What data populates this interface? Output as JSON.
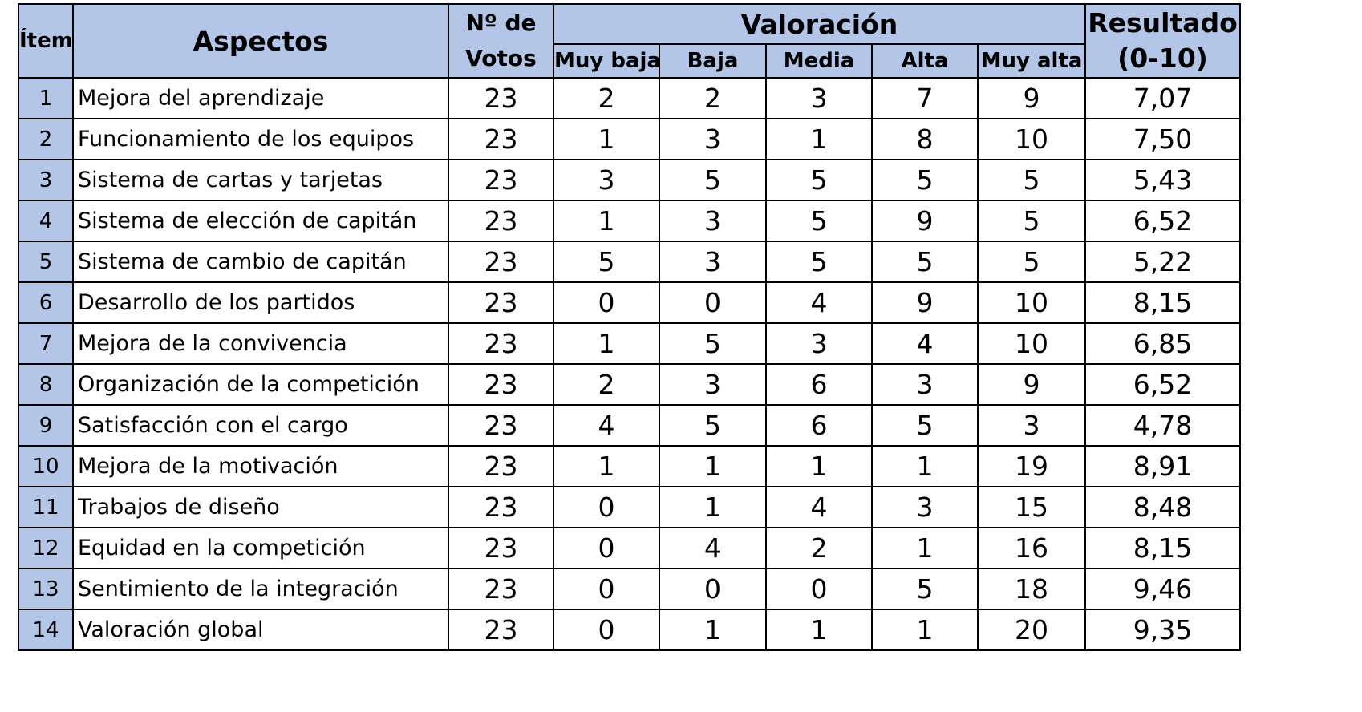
{
  "headers": {
    "item": "Ítem",
    "aspect": "Aspectos",
    "votes_line1": "Nº de",
    "votes_line2": "Votos",
    "valoracion": "Valoración",
    "muy_baja": "Muy baja",
    "baja": "Baja",
    "media": "Media",
    "alta": "Alta",
    "muy_alta": "Muy alta",
    "result_line1": "Resultado",
    "result_line2": "(0-10)"
  },
  "rows": [
    {
      "item": "1",
      "aspect": "Mejora del aprendizaje",
      "votes": "23",
      "muy_baja": "2",
      "baja": "2",
      "media": "3",
      "alta": "7",
      "muy_alta": "9",
      "result": "7,07"
    },
    {
      "item": "2",
      "aspect": "Funcionamiento de los equipos",
      "votes": "23",
      "muy_baja": "1",
      "baja": "3",
      "media": "1",
      "alta": "8",
      "muy_alta": "10",
      "result": "7,50"
    },
    {
      "item": "3",
      "aspect": "Sistema de cartas y tarjetas",
      "votes": "23",
      "muy_baja": "3",
      "baja": "5",
      "media": "5",
      "alta": "5",
      "muy_alta": "5",
      "result": "5,43"
    },
    {
      "item": "4",
      "aspect": "Sistema de elección de capitán",
      "votes": "23",
      "muy_baja": "1",
      "baja": "3",
      "media": "5",
      "alta": "9",
      "muy_alta": "5",
      "result": "6,52"
    },
    {
      "item": "5",
      "aspect": "Sistema de cambio de capitán",
      "votes": "23",
      "muy_baja": "5",
      "baja": "3",
      "media": "5",
      "alta": "5",
      "muy_alta": "5",
      "result": "5,22"
    },
    {
      "item": "6",
      "aspect": "Desarrollo de los partidos",
      "votes": "23",
      "muy_baja": "0",
      "baja": "0",
      "media": "4",
      "alta": "9",
      "muy_alta": "10",
      "result": "8,15"
    },
    {
      "item": "7",
      "aspect": "Mejora de la convivencia",
      "votes": "23",
      "muy_baja": "1",
      "baja": "5",
      "media": "3",
      "alta": "4",
      "muy_alta": "10",
      "result": "6,85"
    },
    {
      "item": "8",
      "aspect": "Organización de la competición",
      "votes": "23",
      "muy_baja": "2",
      "baja": "3",
      "media": "6",
      "alta": "3",
      "muy_alta": "9",
      "result": "6,52"
    },
    {
      "item": "9",
      "aspect": "Satisfacción con el cargo",
      "votes": "23",
      "muy_baja": "4",
      "baja": "5",
      "media": "6",
      "alta": "5",
      "muy_alta": "3",
      "result": "4,78"
    },
    {
      "item": "10",
      "aspect": "Mejora de la motivación",
      "votes": "23",
      "muy_baja": "1",
      "baja": "1",
      "media": "1",
      "alta": "1",
      "muy_alta": "19",
      "result": "8,91"
    },
    {
      "item": "11",
      "aspect": "Trabajos de diseño",
      "votes": "23",
      "muy_baja": "0",
      "baja": "1",
      "media": "4",
      "alta": "3",
      "muy_alta": "15",
      "result": "8,48"
    },
    {
      "item": "12",
      "aspect": "Equidad en la competición",
      "votes": "23",
      "muy_baja": "0",
      "baja": "4",
      "media": "2",
      "alta": "1",
      "muy_alta": "16",
      "result": "8,15"
    },
    {
      "item": "13",
      "aspect": "Sentimiento de la integración",
      "votes": "23",
      "muy_baja": "0",
      "baja": "0",
      "media": "0",
      "alta": "5",
      "muy_alta": "18",
      "result": "9,46"
    },
    {
      "item": "14",
      "aspect": "Valoración global",
      "votes": "23",
      "muy_baja": "0",
      "baja": "1",
      "media": "1",
      "alta": "1",
      "muy_alta": "20",
      "result": "9,35"
    }
  ],
  "colors": {
    "header_bg": "#b4c6e7",
    "border": "#000000"
  }
}
